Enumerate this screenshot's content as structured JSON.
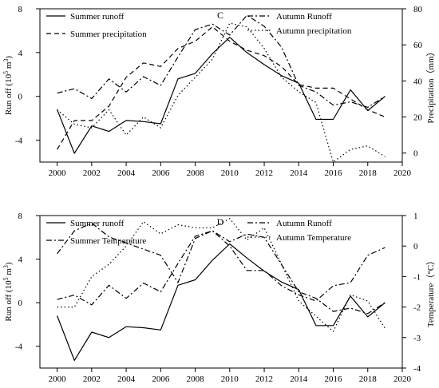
{
  "colors": {
    "ink": "#000000",
    "background": "#ffffff"
  },
  "chart_data": [
    {
      "panel_label": "C",
      "type": "line",
      "xlabel": "",
      "ylabel_left": "Run off (10^5 m^3)",
      "ylabel_right": "Precipitation（mm）",
      "xlim": [
        1999,
        2020
      ],
      "xticks": [
        2000,
        2002,
        2004,
        2006,
        2008,
        2010,
        2012,
        2014,
        2016,
        2018,
        2020
      ],
      "ylim_left": [
        -6,
        8
      ],
      "yticks_left": [
        -4,
        0,
        4,
        8
      ],
      "ylim_right": [
        -5,
        80
      ],
      "yticks_right": [
        0,
        20,
        40,
        60,
        80
      ],
      "grid": false,
      "legend": {
        "left": [
          "Summer runoff",
          "Summer precipitation"
        ],
        "right": [
          "Autumn Runoff",
          "Autumn precipitation"
        ]
      },
      "series": [
        {
          "name": "Summer runoff",
          "axis": "left",
          "style": "solid",
          "x": [
            2000,
            2001,
            2002,
            2003,
            2004,
            2005,
            2006,
            2007,
            2008,
            2009,
            2010,
            2011,
            2012,
            2013,
            2014,
            2015,
            2016,
            2017,
            2018,
            2019
          ],
          "values": [
            -1.2,
            -5.2,
            -2.7,
            -3.2,
            -2.2,
            -2.3,
            -2.5,
            1.6,
            2.1,
            3.9,
            5.4,
            4.0,
            2.9,
            1.9,
            1.2,
            -2.1,
            -2.1,
            0.6,
            -1.3,
            0.0
          ]
        },
        {
          "name": "Summer precipitation",
          "axis": "right",
          "style": "dashed",
          "x": [
            2000,
            2001,
            2002,
            2003,
            2004,
            2005,
            2006,
            2007,
            2008,
            2009,
            2010,
            2011,
            2012,
            2013,
            2014,
            2015,
            2016,
            2017,
            2018,
            2019
          ],
          "values": [
            2,
            18,
            18,
            26,
            42,
            50,
            48,
            58,
            62,
            70,
            62,
            57,
            54,
            48,
            38,
            36,
            36,
            30,
            24,
            20
          ]
        },
        {
          "name": "Autumn Runoff",
          "axis": "left",
          "style": "dashdot",
          "x": [
            2000,
            2001,
            2002,
            2003,
            2004,
            2005,
            2006,
            2007,
            2008,
            2009,
            2010,
            2011,
            2012,
            2013,
            2014,
            2015,
            2016,
            2017,
            2018,
            2019
          ],
          "values": [
            0.3,
            0.7,
            -0.2,
            1.6,
            0.4,
            1.8,
            1.0,
            3.6,
            6.1,
            6.6,
            5.6,
            7.4,
            6.4,
            4.5,
            1.0,
            0.4,
            -0.8,
            -0.5,
            -1.0,
            0.0
          ]
        },
        {
          "name": "Autumn precipitation",
          "axis": "right",
          "style": "dotted",
          "x": [
            2000,
            2001,
            2002,
            2003,
            2004,
            2005,
            2006,
            2007,
            2008,
            2009,
            2010,
            2011,
            2012,
            2013,
            2014,
            2015,
            2016,
            2017,
            2018,
            2019
          ],
          "values": [
            24,
            16,
            14,
            24,
            10,
            20,
            14,
            32,
            42,
            52,
            72,
            70,
            58,
            42,
            34,
            28,
            -5,
            2,
            4,
            -2
          ]
        }
      ]
    },
    {
      "panel_label": "D",
      "type": "line",
      "xlabel": "",
      "ylabel_left": "Run off (10^5 m^3)",
      "ylabel_right": "Temperature（°C）",
      "xlim": [
        1999,
        2020
      ],
      "xticks": [
        2000,
        2002,
        2004,
        2006,
        2008,
        2010,
        2012,
        2014,
        2016,
        2018,
        2020
      ],
      "ylim_left": [
        -6,
        8
      ],
      "yticks_left": [
        -4,
        0,
        4,
        8
      ],
      "ylim_right": [
        -4,
        1
      ],
      "yticks_right": [
        -4,
        -3,
        -2,
        -1,
        0,
        1
      ],
      "grid": false,
      "legend": {
        "left": [
          "Summer runoff",
          "Summer Temperature"
        ],
        "right": [
          "Autumn Runoff",
          "Autumn Temperature"
        ]
      },
      "series": [
        {
          "name": "Summer runoff",
          "axis": "left",
          "style": "solid",
          "x": [
            2000,
            2001,
            2002,
            2003,
            2004,
            2005,
            2006,
            2007,
            2008,
            2009,
            2010,
            2011,
            2012,
            2013,
            2014,
            2015,
            2016,
            2017,
            2018,
            2019
          ],
          "values": [
            -1.2,
            -5.3,
            -2.7,
            -3.2,
            -2.2,
            -2.3,
            -2.5,
            1.6,
            2.1,
            3.9,
            5.4,
            4.1,
            2.9,
            1.9,
            1.2,
            -2.1,
            -2.1,
            0.6,
            -1.3,
            0.0
          ]
        },
        {
          "name": "Summer Temperature",
          "axis": "right",
          "style": "dashdot",
          "x": [
            2000,
            2001,
            2002,
            2003,
            2004,
            2005,
            2006,
            2007,
            2008,
            2009,
            2010,
            2011,
            2012,
            2013,
            2014,
            2015,
            2016,
            2017,
            2018,
            2019
          ],
          "values": [
            -0.25,
            0.5,
            0.75,
            0.3,
            0.1,
            -0.1,
            -0.3,
            -1.2,
            0.25,
            0.5,
            0.0,
            -0.8,
            -0.8,
            -1.3,
            -1.6,
            -1.8,
            -1.3,
            -1.2,
            -0.3,
            -0.05
          ]
        },
        {
          "name": "Autumn Runoff",
          "axis": "left",
          "style": "dashdot",
          "x": [
            2000,
            2001,
            2002,
            2003,
            2004,
            2005,
            2006,
            2007,
            2008,
            2009,
            2010,
            2011,
            2012,
            2013,
            2014,
            2015,
            2016,
            2017,
            2018,
            2019
          ],
          "values": [
            0.3,
            0.7,
            -0.2,
            1.6,
            0.4,
            1.8,
            1.0,
            3.6,
            6.1,
            6.6,
            5.6,
            6.3,
            6.0,
            3.5,
            1.0,
            0.4,
            -0.8,
            -0.5,
            -1.0,
            0.0
          ]
        },
        {
          "name": "Autumn Temperature",
          "axis": "right",
          "style": "dotted",
          "x": [
            2000,
            2001,
            2002,
            2003,
            2004,
            2005,
            2006,
            2007,
            2008,
            2009,
            2010,
            2011,
            2012,
            2013,
            2014,
            2015,
            2016,
            2017,
            2018,
            2019
          ],
          "values": [
            -2.0,
            -2.0,
            -1.0,
            -0.6,
            0.0,
            0.8,
            0.4,
            0.7,
            0.6,
            0.6,
            0.9,
            0.2,
            0.6,
            -0.6,
            -1.8,
            -2.3,
            -2.8,
            -1.6,
            -1.8,
            -2.7
          ]
        }
      ]
    }
  ]
}
